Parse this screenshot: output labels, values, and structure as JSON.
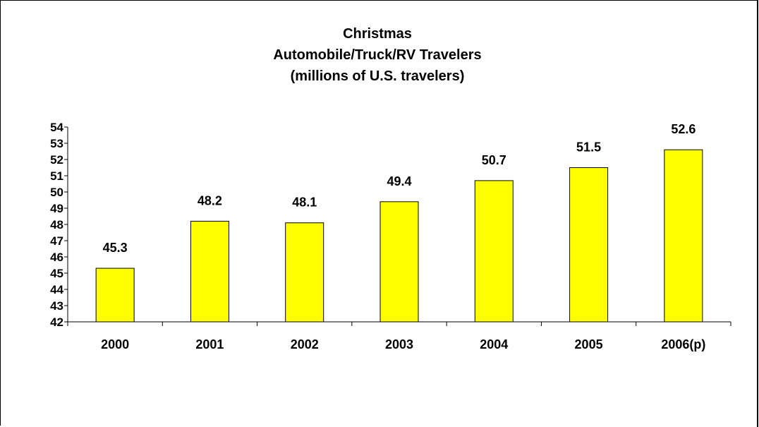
{
  "chart_data": {
    "type": "bar",
    "title_lines": [
      "Christmas",
      "Automobile/Truck/RV Travelers",
      "(millions of U.S. travelers)"
    ],
    "categories": [
      "2000",
      "2001",
      "2002",
      "2003",
      "2004",
      "2005",
      "2006(p)"
    ],
    "values": [
      45.3,
      48.2,
      48.1,
      49.4,
      50.7,
      51.5,
      52.6
    ],
    "data_labels": [
      "45.3",
      "48.2",
      "48.1",
      "49.4",
      "50.7",
      "51.5",
      "52.6"
    ],
    "ylim": [
      42,
      54
    ],
    "yticks": [
      42,
      43,
      44,
      45,
      46,
      47,
      48,
      49,
      50,
      51,
      52,
      53,
      54
    ],
    "grid": false,
    "legend": "none",
    "bar_color": "#FFFF00",
    "bar_border_color": "#000000"
  }
}
